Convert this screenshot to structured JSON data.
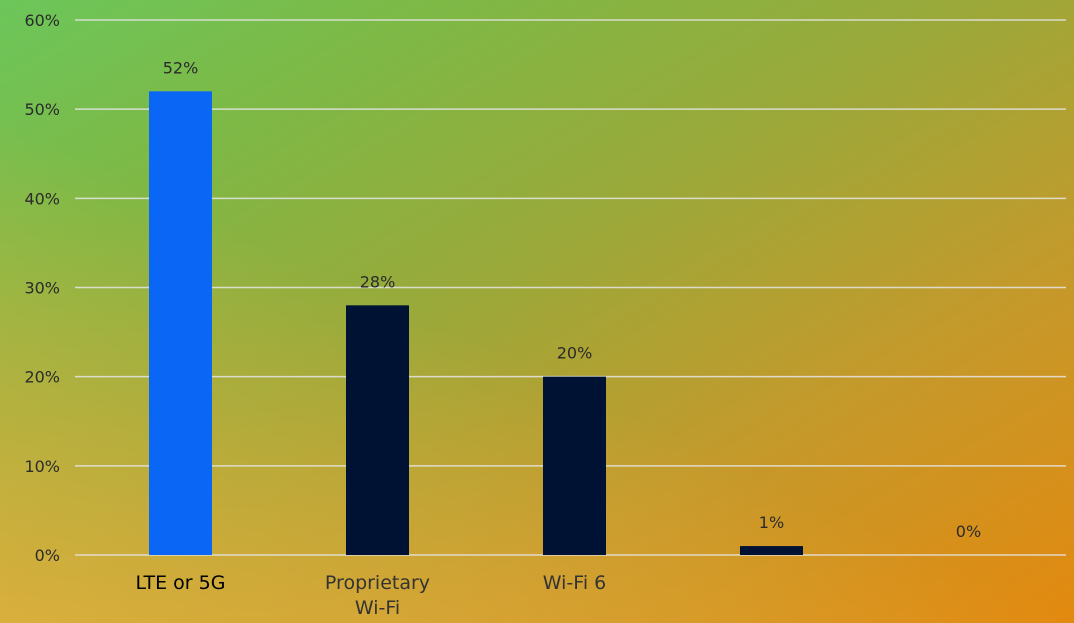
{
  "chart_data": {
    "type": "bar",
    "categories": [
      [
        "LTE or 5G"
      ],
      [
        "Proprietary",
        "Wi-Fi"
      ],
      [
        "Wi-Fi 6"
      ],
      [
        ""
      ],
      [
        ""
      ]
    ],
    "values": [
      52,
      28,
      20,
      1,
      0
    ],
    "data_labels": [
      "52%",
      "28%",
      "20%",
      "1%",
      "0%"
    ],
    "yticks": [
      0,
      10,
      20,
      30,
      40,
      50,
      60
    ],
    "ytick_labels": [
      "0%",
      "10%",
      "20%",
      "30%",
      "40%",
      "50%",
      "60%"
    ],
    "ylim": [
      0,
      60
    ],
    "grid": true,
    "highlight_index": 0,
    "colors": {
      "highlight": "#0a66f5",
      "default": "#001233"
    }
  }
}
